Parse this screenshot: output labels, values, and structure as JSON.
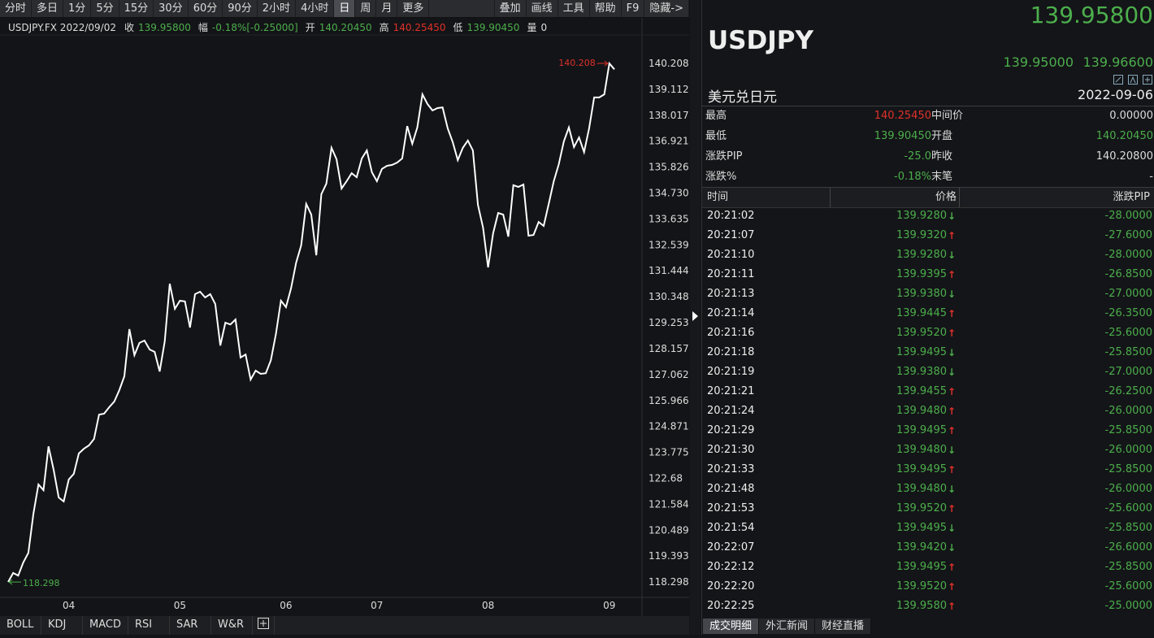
{
  "toolbar": {
    "periods": [
      "分时",
      "多日",
      "1分",
      "5分",
      "15分",
      "30分",
      "60分",
      "90分",
      "2小时",
      "4小时",
      "日",
      "周",
      "月",
      "更多"
    ],
    "tools": [
      "叠加",
      "画线",
      "工具",
      "帮助",
      "F9",
      "隐藏->"
    ]
  },
  "quote_bar": {
    "symbol_date": "USDJPY.FX 2022/09/02",
    "items": [
      [
        "收",
        "139.95800"
      ],
      [
        "幅",
        "-0.18%[-0.25000]"
      ],
      [
        "开",
        "140.20450"
      ],
      [
        "高",
        "140.25450"
      ],
      [
        "低",
        "139.90450"
      ],
      [
        "量",
        "0"
      ]
    ]
  },
  "chart_data": {
    "type": "line",
    "color": "#ffffff",
    "grid": false,
    "categories": [
      null,
      null,
      null,
      null,
      null,
      null,
      null,
      null,
      null,
      null,
      null,
      null,
      "04",
      null,
      null,
      null,
      null,
      null,
      null,
      null,
      null,
      null,
      null,
      null,
      null,
      null,
      null,
      null,
      null,
      null,
      null,
      null,
      null,
      null,
      "05",
      null,
      null,
      null,
      null,
      null,
      null,
      null,
      null,
      null,
      null,
      null,
      null,
      null,
      null,
      null,
      null,
      null,
      null,
      null,
      null,
      "06",
      null,
      null,
      null,
      null,
      null,
      null,
      null,
      null,
      null,
      null,
      null,
      null,
      null,
      null,
      null,
      null,
      null,
      "07",
      null,
      null,
      null,
      null,
      null,
      null,
      null,
      null,
      null,
      null,
      null,
      null,
      null,
      null,
      null,
      null,
      null,
      null,
      null,
      null,
      null,
      "08",
      null,
      null,
      null,
      null,
      null,
      null,
      null,
      null,
      null,
      null,
      null,
      null,
      null,
      null,
      null,
      null,
      null,
      null,
      null,
      null,
      null,
      null,
      null,
      "09",
      null
    ],
    "values": [
      118.298,
      118.68,
      118.57,
      119.12,
      119.53,
      121.18,
      122.42,
      122.18,
      124.03,
      123.04,
      121.87,
      121.7,
      122.63,
      122.87,
      123.73,
      123.93,
      124.07,
      124.34,
      125.37,
      125.41,
      125.68,
      125.92,
      126.4,
      126.99,
      128.98,
      127.88,
      128.4,
      128.5,
      128.12,
      128.02,
      127.19,
      128.46,
      130.9,
      129.84,
      130.18,
      130.15,
      129.05,
      130.46,
      130.56,
      130.32,
      130.46,
      130.04,
      128.29,
      129.25,
      129.18,
      129.39,
      127.78,
      127.91,
      126.85,
      127.23,
      127.09,
      127.12,
      127.67,
      128.77,
      130.18,
      129.91,
      130.7,
      131.79,
      132.52,
      134.27,
      133.82,
      132.1,
      134.68,
      135.13,
      136.64,
      136.16,
      134.92,
      135.23,
      135.57,
      135.4,
      136.19,
      136.53,
      135.61,
      135.23,
      135.75,
      135.88,
      135.92,
      136.02,
      136.19,
      137.56,
      136.81,
      137.5,
      138.9,
      138.49,
      138.22,
      138.32,
      138.35,
      137.46,
      136.88,
      136.12,
      136.64,
      136.95,
      136.53,
      134.23,
      133.27,
      131.59,
      133.03,
      133.89,
      133.82,
      132.89,
      135.06,
      134.99,
      135.09,
      132.93,
      132.96,
      133.51,
      133.34,
      134.27,
      135.23,
      135.95,
      136.91,
      137.5,
      136.67,
      137.08,
      136.46,
      137.46,
      138.77,
      138.77,
      138.9,
      140.208,
      139.958
    ],
    "ylim": [
      117.65,
      141.34
    ],
    "yticks": [
      118.298,
      119.3935,
      120.489,
      121.5845,
      122.68,
      123.7755,
      124.871,
      125.9665,
      127.062,
      128.1575,
      129.253,
      130.3485,
      131.444,
      132.5395,
      133.635,
      134.7305,
      135.826,
      136.9215,
      138.017,
      139.1125,
      140.208
    ],
    "high_label": "140.208",
    "low_label": "118.298"
  },
  "indicator_tabs": [
    "BOLL",
    "KDJ",
    "MACD",
    "RSI",
    "SAR",
    "W&R"
  ],
  "quote_panel": {
    "last": "139.95800",
    "symbol": "USDJPY",
    "bid": "139.95000",
    "ask": "139.96600",
    "name": "美元兑日元",
    "date": "2022-09-06",
    "stats": [
      [
        "最高",
        "140.25450",
        "中间价",
        "0.00000"
      ],
      [
        "最低",
        "139.90450",
        "开盘",
        "140.20450"
      ],
      [
        "涨跌PIP",
        "-25.0",
        "昨收",
        "140.20800"
      ],
      [
        "涨跌%",
        "-0.18%",
        "末笔",
        "-"
      ]
    ]
  },
  "trades": {
    "headers": [
      "时间",
      "价格",
      "涨跌PIP"
    ],
    "rows": [
      [
        "20:21:02",
        "139.9280",
        "↓",
        "-28.0000"
      ],
      [
        "20:21:07",
        "139.9320",
        "↑",
        "-27.6000"
      ],
      [
        "20:21:10",
        "139.9280",
        "↓",
        "-28.0000"
      ],
      [
        "20:21:11",
        "139.9395",
        "↑",
        "-26.8500"
      ],
      [
        "20:21:13",
        "139.9380",
        "↓",
        "-27.0000"
      ],
      [
        "20:21:14",
        "139.9445",
        "↑",
        "-26.3500"
      ],
      [
        "20:21:16",
        "139.9520",
        "↑",
        "-25.6000"
      ],
      [
        "20:21:18",
        "139.9495",
        "↓",
        "-25.8500"
      ],
      [
        "20:21:19",
        "139.9380",
        "↓",
        "-27.0000"
      ],
      [
        "20:21:21",
        "139.9455",
        "↑",
        "-26.2500"
      ],
      [
        "20:21:24",
        "139.9480",
        "↑",
        "-26.0000"
      ],
      [
        "20:21:29",
        "139.9495",
        "↑",
        "-25.8500"
      ],
      [
        "20:21:30",
        "139.9480",
        "↓",
        "-26.0000"
      ],
      [
        "20:21:33",
        "139.9495",
        "↑",
        "-25.8500"
      ],
      [
        "20:21:48",
        "139.9480",
        "↓",
        "-26.0000"
      ],
      [
        "20:21:53",
        "139.9520",
        "↑",
        "-25.6000"
      ],
      [
        "20:21:54",
        "139.9495",
        "↓",
        "-25.8500"
      ],
      [
        "20:22:07",
        "139.9420",
        "↓",
        "-26.6000"
      ],
      [
        "20:22:12",
        "139.9495",
        "↑",
        "-25.8500"
      ],
      [
        "20:22:20",
        "139.9520",
        "↑",
        "-25.6000"
      ],
      [
        "20:22:25",
        "139.9580",
        "↑",
        "-25.0000"
      ]
    ]
  },
  "bottom_tabs": [
    "成交明细",
    "外汇新闻",
    "财经直播"
  ]
}
